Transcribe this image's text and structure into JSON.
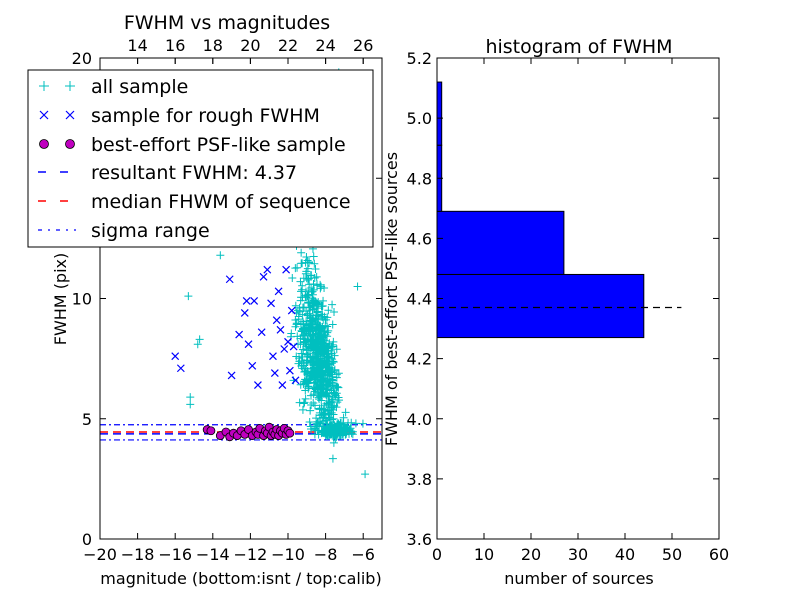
{
  "figure": {
    "colors": {
      "all_sample": "#00bfbf",
      "rough_sample": "#0000ff",
      "psf_marker_face": "#bf00bf",
      "resultant_line": "#0000ff",
      "median_line": "#ff0000",
      "sigma_line": "#0000ff",
      "hist_fill": "#0000ff"
    }
  },
  "chart_data": [
    {
      "type": "scatter",
      "title": "FWHM vs magnitudes",
      "xlabel": "magnitude (bottom:isnt / top:calib)",
      "ylabel": "FWHM (pix)",
      "xlim": [
        -20,
        -5
      ],
      "ylim": [
        0,
        20
      ],
      "x_ticks": [
        "−20",
        "−18",
        "−16",
        "−14",
        "−12",
        "−10",
        "−8",
        "−6"
      ],
      "y_ticks": [
        "0",
        "5",
        "10",
        "15",
        "20"
      ],
      "top_axis": {
        "ticks": [
          "14",
          "16",
          "18",
          "20",
          "22",
          "24",
          "26"
        ],
        "calib_offset": 32
      },
      "legend": {
        "placement": "upper-left",
        "entries": [
          {
            "label": "all sample",
            "marker": "plus",
            "color": "#00bfbf"
          },
          {
            "label": "sample for rough FWHM",
            "marker": "x",
            "color": "#0000ff"
          },
          {
            "label": "best-effort PSF-like sample",
            "marker": "circle",
            "color": "#bf00bf"
          },
          {
            "label": "resultant FWHM: 4.37",
            "marker": "dashed",
            "color": "#0000ff"
          },
          {
            "label": "median FHWM of sequence",
            "marker": "dashed",
            "color": "#ff0000"
          },
          {
            "label": "sigma range",
            "marker": "dashdot",
            "color": "#0000ff"
          }
        ]
      },
      "series": [
        {
          "name": "best-effort PSF-like sample",
          "marker": "circle",
          "points": [
            [
              -14.3,
              4.55
            ],
            [
              -14.1,
              4.5
            ],
            [
              -13.6,
              4.3
            ],
            [
              -13.3,
              4.45
            ],
            [
              -13.1,
              4.25
            ],
            [
              -12.9,
              4.4
            ],
            [
              -12.7,
              4.3
            ],
            [
              -12.5,
              4.5
            ],
            [
              -12.3,
              4.35
            ],
            [
              -12.1,
              4.55
            ],
            [
              -11.9,
              4.3
            ],
            [
              -11.7,
              4.45
            ],
            [
              -11.6,
              4.35
            ],
            [
              -11.5,
              4.6
            ],
            [
              -11.3,
              4.3
            ],
            [
              -11.2,
              4.5
            ],
            [
              -11.1,
              4.4
            ],
            [
              -11.0,
              4.65
            ],
            [
              -10.9,
              4.3
            ],
            [
              -10.8,
              4.45
            ],
            [
              -10.7,
              4.35
            ],
            [
              -10.6,
              4.55
            ],
            [
              -10.5,
              4.3
            ],
            [
              -10.4,
              4.5
            ],
            [
              -10.3,
              4.4
            ],
            [
              -10.2,
              4.6
            ],
            [
              -10.1,
              4.35
            ],
            [
              -10.0,
              4.5
            ],
            [
              -9.9,
              4.4
            ]
          ]
        },
        {
          "name": "sample for rough FWHM",
          "marker": "x",
          "points": [
            [
              -16.0,
              7.6
            ],
            [
              -15.7,
              7.1
            ],
            [
              -13.1,
              10.8
            ],
            [
              -13.0,
              6.8
            ],
            [
              -12.6,
              8.5
            ],
            [
              -12.3,
              9.4
            ],
            [
              -12.2,
              9.9
            ],
            [
              -12.1,
              8.1
            ],
            [
              -11.9,
              7.2
            ],
            [
              -11.8,
              9.9
            ],
            [
              -11.6,
              6.4
            ],
            [
              -11.4,
              8.6
            ],
            [
              -11.3,
              10.9
            ],
            [
              -11.1,
              11.2
            ],
            [
              -10.9,
              9.8
            ],
            [
              -10.8,
              7.6
            ],
            [
              -10.7,
              6.9
            ],
            [
              -10.6,
              9.1
            ],
            [
              -10.5,
              10.3
            ],
            [
              -10.4,
              8.7
            ],
            [
              -10.3,
              6.4
            ],
            [
              -10.2,
              7.9
            ],
            [
              -10.1,
              11.2
            ],
            [
              -10.0,
              8.2
            ],
            [
              -9.9,
              7.0
            ],
            [
              -9.8,
              9.5
            ],
            [
              -9.7,
              8.0
            ],
            [
              -9.6,
              6.6
            ]
          ]
        }
      ],
      "lines": {
        "resultant_fwhm": 4.37,
        "median_fwhm": 4.45,
        "sigma_range": [
          4.12,
          4.75
        ]
      }
    },
    {
      "type": "bar",
      "orientation": "horizontal",
      "title": "histogram of FWHM",
      "xlabel": "number of sources",
      "ylabel": "FWHM of best-effort PSF-like sources",
      "xlim": [
        0,
        60
      ],
      "ylim": [
        3.6,
        5.2
      ],
      "x_ticks": [
        "0",
        "10",
        "20",
        "30",
        "40",
        "50",
        "60"
      ],
      "y_ticks": [
        "3.6",
        "3.8",
        "4.0",
        "4.2",
        "4.4",
        "4.6",
        "4.8",
        "5.0",
        "5.2"
      ],
      "bins": [
        {
          "y0": 4.27,
          "y1": 4.48,
          "count": 44
        },
        {
          "y0": 4.48,
          "y1": 4.69,
          "count": 27
        },
        {
          "y0": 4.69,
          "y1": 4.91,
          "count": 1
        },
        {
          "y0": 4.91,
          "y1": 5.12,
          "count": 1
        }
      ],
      "reference_line": {
        "y": 4.37,
        "x_end": 52,
        "style": "dashed"
      }
    }
  ]
}
